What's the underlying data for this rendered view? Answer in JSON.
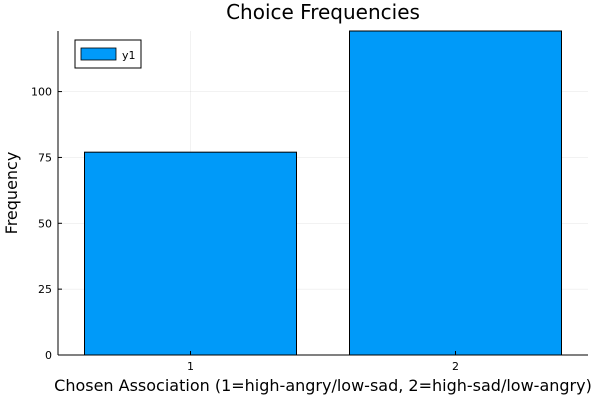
{
  "chart_data": {
    "type": "bar",
    "title": "Choice Frequencies",
    "xlabel": "Chosen Association (1=high-angry/low-sad, 2=high-sad/low-angry)",
    "ylabel": "Frequency",
    "categories": [
      "1",
      "2"
    ],
    "series": [
      {
        "name": "y1",
        "values": [
          77,
          123
        ],
        "color": "#009af9"
      }
    ],
    "ylim": [
      0,
      123
    ],
    "yticks": [
      0,
      25,
      50,
      75,
      100
    ],
    "grid": true,
    "legend": "top-left"
  }
}
